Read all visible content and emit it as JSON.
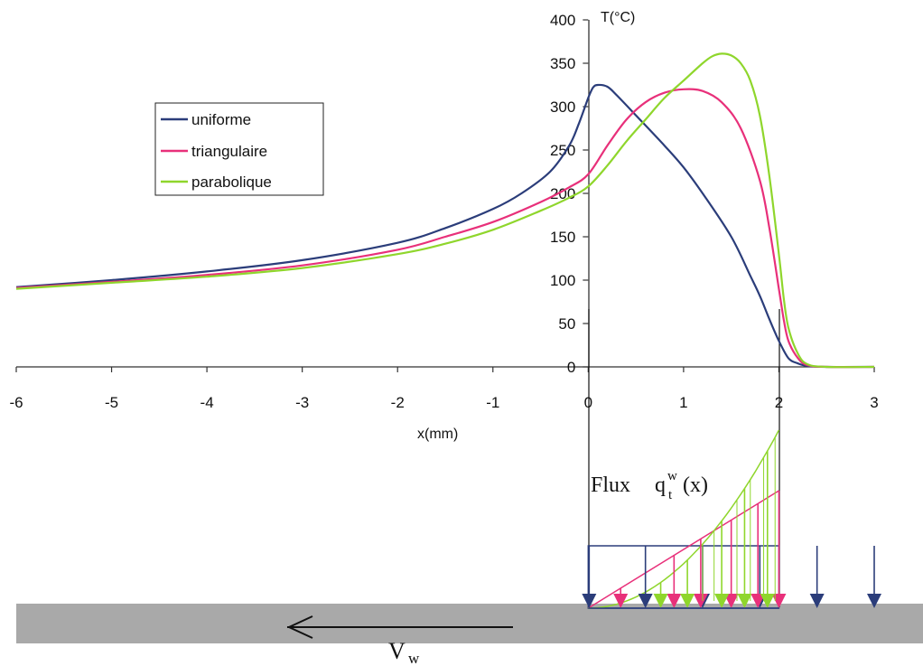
{
  "chart_data": {
    "type": "line",
    "title": "",
    "xlabel": "x(mm)",
    "ylabel": "T(°C)",
    "xlim": [
      -6,
      3
    ],
    "ylim": [
      0,
      400
    ],
    "x_ticks": [
      -6,
      -5,
      -4,
      -3,
      -2,
      -1,
      0,
      1,
      2,
      3
    ],
    "y_ticks": [
      0,
      50,
      100,
      150,
      200,
      250,
      300,
      350,
      400
    ],
    "legend_position": "left",
    "series": [
      {
        "name": "uniforme",
        "color": "#2b3d7a",
        "x": [
          -6,
          -5,
          -4,
          -3,
          -2,
          -1.5,
          -1,
          -0.7,
          -0.4,
          -0.2,
          -0.1,
          0,
          0.05,
          0.1,
          0.2,
          0.3,
          0.5,
          0.8,
          1.0,
          1.2,
          1.5,
          1.7,
          1.8,
          1.9,
          2.0,
          2.1,
          2.2,
          2.3,
          2.5,
          3.0
        ],
        "y": [
          92,
          100,
          110,
          123,
          143,
          160,
          182,
          200,
          225,
          255,
          280,
          310,
          322,
          325,
          323,
          313,
          290,
          255,
          230,
          200,
          150,
          105,
          82,
          55,
          30,
          10,
          4,
          1,
          0,
          0
        ]
      },
      {
        "name": "triangulaire",
        "color": "#e8307a",
        "x": [
          -6,
          -5,
          -4,
          -3,
          -2,
          -1.5,
          -1,
          -0.5,
          -0.2,
          0,
          0.2,
          0.4,
          0.6,
          0.8,
          1.0,
          1.2,
          1.4,
          1.6,
          1.8,
          1.9,
          2.0,
          2.05,
          2.1,
          2.2,
          2.3,
          2.5,
          3.0
        ],
        "y": [
          91,
          98,
          106,
          117,
          135,
          150,
          167,
          190,
          207,
          222,
          255,
          285,
          305,
          316,
          320,
          318,
          305,
          275,
          215,
          160,
          90,
          55,
          30,
          10,
          2,
          0,
          0
        ]
      },
      {
        "name": "parabolique",
        "color": "#8fd62c",
        "x": [
          -6,
          -5,
          -4,
          -3,
          -2,
          -1.5,
          -1,
          -0.5,
          -0.2,
          0,
          0.2,
          0.4,
          0.6,
          0.8,
          1.0,
          1.2,
          1.3,
          1.4,
          1.5,
          1.6,
          1.7,
          1.8,
          1.9,
          2.0,
          2.05,
          2.1,
          2.2,
          2.3,
          2.5,
          3.0
        ],
        "y": [
          90,
          97,
          104,
          114,
          130,
          142,
          158,
          180,
          195,
          208,
          232,
          260,
          285,
          310,
          330,
          350,
          358,
          361,
          359,
          350,
          330,
          290,
          220,
          130,
          80,
          45,
          15,
          3,
          0,
          0
        ]
      }
    ],
    "flux_label": "Flux",
    "flux_symbol": "q",
    "flux_subscript": "t",
    "flux_superscript": "w",
    "flux_argument": "(x)",
    "velocity_label": "V",
    "velocity_subscript": "w",
    "flux_colors": {
      "uniforme": "#2b3d7a",
      "triangulaire": "#e8307a",
      "parabolique": "#8fd62c"
    },
    "workpiece_color": "#a9a9a9"
  }
}
